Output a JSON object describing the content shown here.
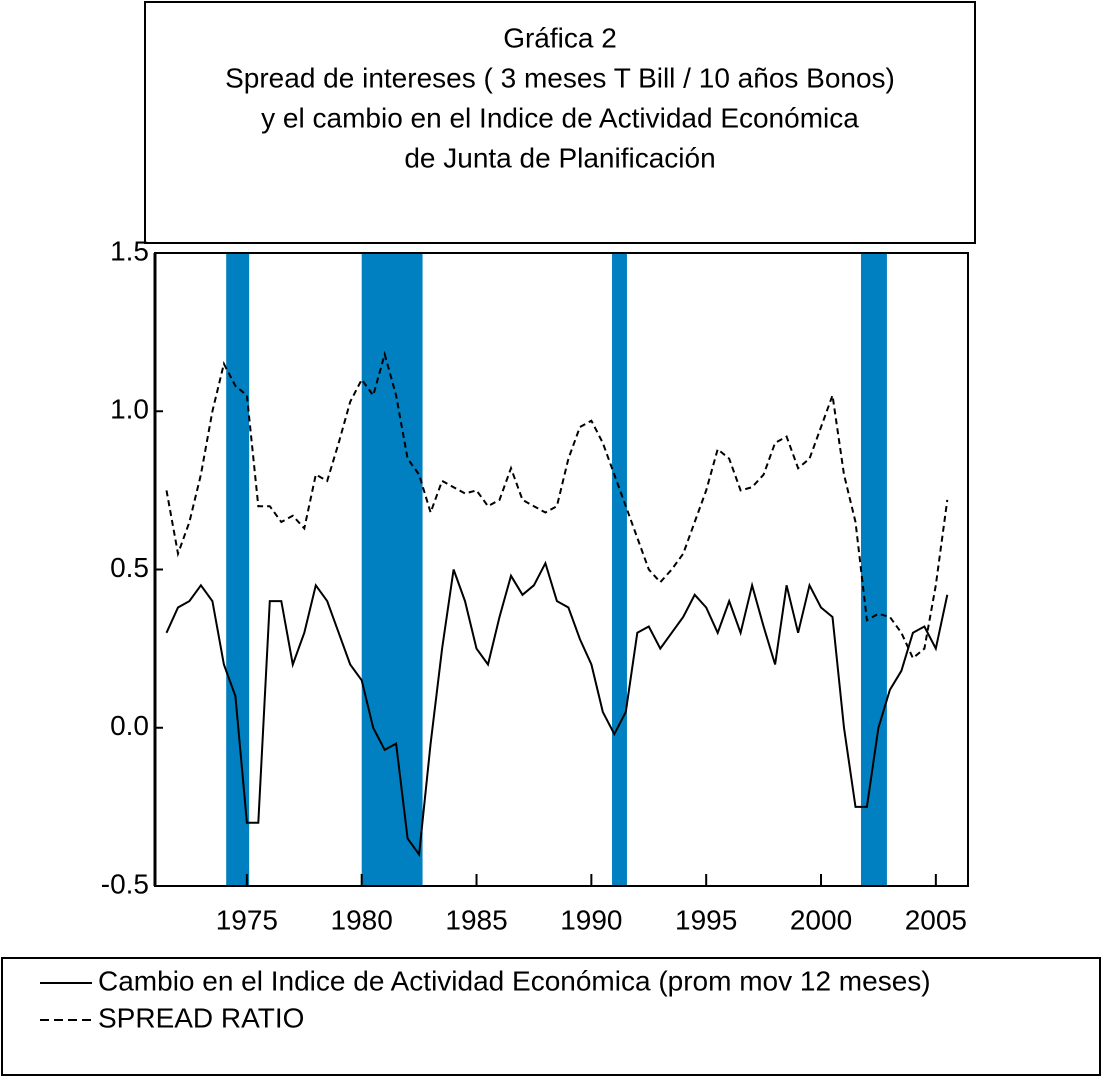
{
  "chart_data": {
    "type": "line",
    "title": [
      "Gráfica 2",
      "Spread de intereses ( 3 meses T Bill / 10 años Bonos)",
      "y el cambio en el Indice de Actividad Económica",
      "de Junta de Planificación"
    ],
    "xlim": [
      1971.0,
      2006.4
    ],
    "xticks": [
      1975,
      1980,
      1985,
      1990,
      1995,
      2000,
      2005
    ],
    "ylim": [
      -0.5,
      1.5
    ],
    "yticks": [
      {
        "value": -0.5,
        "label": "-0.5"
      },
      {
        "value": 0,
        "label": "0.0"
      },
      {
        "value": 0.5,
        "label": "0.5"
      },
      {
        "value": 1,
        "label": "1.0"
      },
      {
        "value": 1.5,
        "label": "1.5"
      }
    ],
    "shaded_periods": [
      [
        1974.1,
        1975.1
      ],
      [
        1980.0,
        1982.65
      ],
      [
        1990.9,
        1991.55
      ],
      [
        2001.74,
        2002.87
      ]
    ],
    "shade_color": "#0080c0",
    "x": [
      1971.5,
      1972,
      1972.5,
      1973,
      1973.5,
      1974,
      1974.5,
      1975,
      1975.5,
      1976,
      1976.5,
      1977,
      1977.5,
      1978,
      1978.5,
      1979,
      1979.5,
      1980,
      1980.5,
      1981,
      1981.5,
      1982,
      1982.5,
      1983,
      1983.5,
      1984,
      1984.5,
      1985,
      1985.5,
      1986,
      1986.5,
      1987,
      1987.5,
      1988,
      1988.5,
      1989,
      1989.5,
      1990,
      1990.5,
      1991,
      1991.5,
      1992,
      1992.5,
      1993,
      1993.5,
      1994,
      1994.5,
      1995,
      1995.5,
      1996,
      1996.5,
      1997,
      1997.5,
      1998,
      1998.5,
      1999,
      1999.5,
      2000,
      2000.5,
      2001,
      2001.5,
      2002,
      2002.5,
      2003,
      2003.5,
      2004,
      2004.5,
      2005,
      2005.5
    ],
    "series": [
      {
        "name": "Cambio en el Indice de Actividad Económica (prom mov 12 meses)",
        "color": "#000000",
        "dash": false,
        "values": [
          0.3,
          0.38,
          0.4,
          0.45,
          0.4,
          0.2,
          0.1,
          -0.3,
          -0.3,
          0.4,
          0.4,
          0.2,
          0.3,
          0.45,
          0.4,
          0.3,
          0.2,
          0.15,
          0.0,
          -0.07,
          -0.05,
          -0.35,
          -0.4,
          -0.05,
          0.25,
          0.5,
          0.4,
          0.25,
          0.2,
          0.35,
          0.48,
          0.42,
          0.45,
          0.52,
          0.4,
          0.38,
          0.28,
          0.2,
          0.05,
          -0.02,
          0.05,
          0.3,
          0.32,
          0.25,
          0.3,
          0.35,
          0.42,
          0.38,
          0.3,
          0.4,
          0.3,
          0.45,
          0.32,
          0.2,
          0.45,
          0.3,
          0.45,
          0.38,
          0.35,
          0.0,
          -0.25,
          -0.25,
          0.0,
          0.12,
          0.18,
          0.3,
          0.32,
          0.25,
          0.42
        ]
      },
      {
        "name": "SPREAD RATIO",
        "color": "#000000",
        "dash": true,
        "values": [
          0.75,
          0.55,
          0.65,
          0.8,
          1.0,
          1.15,
          1.08,
          1.05,
          0.7,
          0.7,
          0.65,
          0.67,
          0.63,
          0.8,
          0.78,
          0.9,
          1.03,
          1.1,
          1.05,
          1.18,
          1.05,
          0.85,
          0.8,
          0.68,
          0.78,
          0.76,
          0.74,
          0.75,
          0.7,
          0.72,
          0.82,
          0.72,
          0.7,
          0.68,
          0.7,
          0.85,
          0.95,
          0.97,
          0.9,
          0.8,
          0.7,
          0.6,
          0.5,
          0.46,
          0.5,
          0.55,
          0.65,
          0.75,
          0.88,
          0.85,
          0.75,
          0.76,
          0.8,
          0.9,
          0.92,
          0.82,
          0.85,
          0.95,
          1.05,
          0.8,
          0.65,
          0.34,
          0.36,
          0.35,
          0.3,
          0.22,
          0.25,
          0.45,
          0.72
        ]
      }
    ]
  }
}
